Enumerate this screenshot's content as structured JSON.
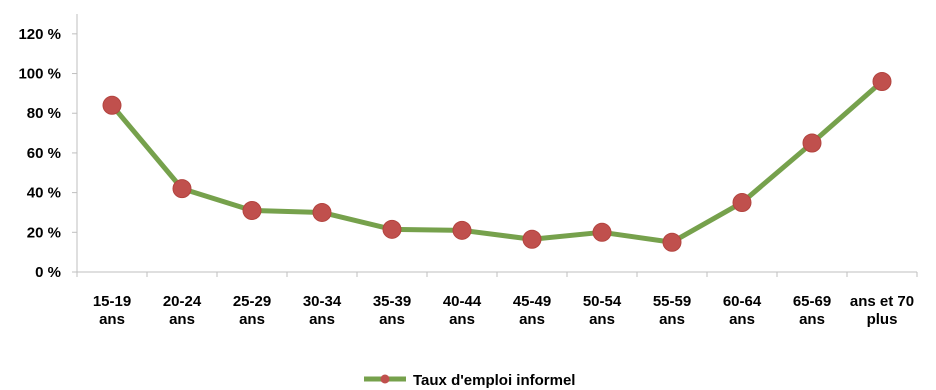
{
  "chart_data": {
    "type": "line",
    "categories": [
      "15-19 ans",
      "20-24 ans",
      "25-29 ans",
      "30-34 ans",
      "35-39 ans",
      "40-44 ans",
      "45-49 ans",
      "50-54 ans",
      "55-59 ans",
      "60-64 ans",
      "65-69 ans",
      "ans et 70 plus"
    ],
    "category_lines": [
      [
        "15-19",
        "ans"
      ],
      [
        "20-24",
        "ans"
      ],
      [
        "25-29",
        "ans"
      ],
      [
        "30-34",
        "ans"
      ],
      [
        "35-39",
        "ans"
      ],
      [
        "40-44",
        "ans"
      ],
      [
        "45-49",
        "ans"
      ],
      [
        "50-54",
        "ans"
      ],
      [
        "55-59",
        "ans"
      ],
      [
        "60-64",
        "ans"
      ],
      [
        "65-69",
        "ans"
      ],
      [
        "ans et 70",
        "plus"
      ]
    ],
    "series": [
      {
        "name": "Taux d'emploi informel",
        "values": [
          84,
          42,
          31,
          30,
          21.5,
          21,
          16.5,
          20,
          15,
          35,
          65,
          96
        ],
        "line_color": "#76a14c",
        "marker_color": "#c0504d"
      }
    ],
    "ylim": [
      0,
      120
    ],
    "yticks": [
      0,
      20,
      40,
      60,
      80,
      100,
      120
    ],
    "ytick_labels": [
      "0 %",
      "20 %",
      "40 %",
      "60 %",
      "80 %",
      "100 %",
      "120 %"
    ],
    "grid": false,
    "legend_position": "bottom"
  }
}
